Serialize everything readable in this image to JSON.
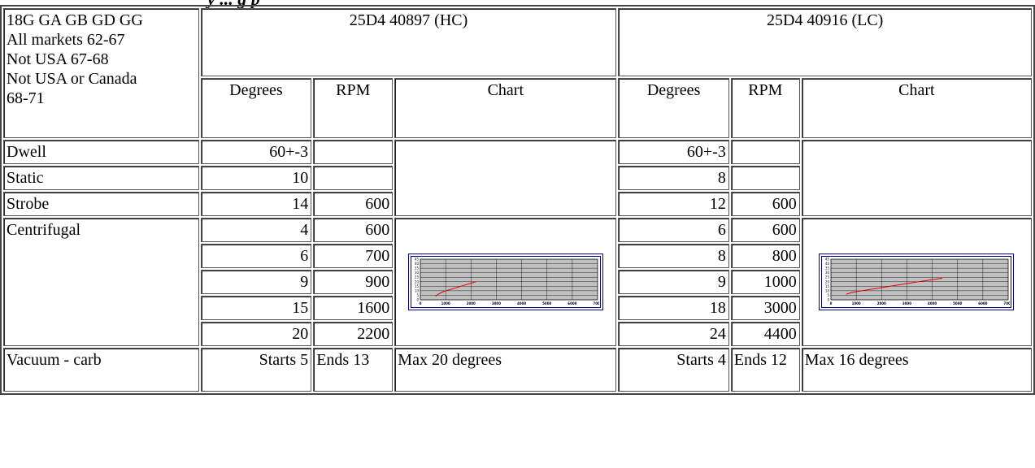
{
  "page_title_fragment": "y ... g p",
  "header": {
    "model_info": [
      "18G GA GB GD GG",
      "All markets 62-67",
      "Not USA 67-68",
      "Not USA or Canada",
      "68-71"
    ],
    "dist_hc": "25D4 40897 (HC)",
    "dist_lc": "25D4 40916 (LC)",
    "col_degrees": "Degrees",
    "col_rpm": "RPM",
    "col_chart": "Chart"
  },
  "rows": {
    "dwell": {
      "label": "Dwell",
      "hc_deg": "60+-3",
      "hc_rpm": "",
      "lc_deg": "60+-3",
      "lc_rpm": ""
    },
    "static": {
      "label": "Static",
      "hc_deg": "10",
      "hc_rpm": "",
      "lc_deg": "8",
      "lc_rpm": ""
    },
    "strobe": {
      "label": "Strobe",
      "hc_deg": "14",
      "hc_rpm": "600",
      "lc_deg": "12",
      "lc_rpm": "600"
    },
    "centrifugal": {
      "label": "Centrifugal",
      "hc": [
        [
          "4",
          "600"
        ],
        [
          "6",
          "700"
        ],
        [
          "9",
          "900"
        ],
        [
          "15",
          "1600"
        ],
        [
          "20",
          "2200"
        ]
      ],
      "lc": [
        [
          "6",
          "600"
        ],
        [
          "8",
          "800"
        ],
        [
          "9",
          "1000"
        ],
        [
          "18",
          "3000"
        ],
        [
          "24",
          "4400"
        ]
      ]
    },
    "vacuum": {
      "label": "Vacuum - carb",
      "hc_start": "Starts 5",
      "hc_end": "Ends 13",
      "hc_max": "Max 20 degrees",
      "lc_start": "Starts 4",
      "lc_end": "Ends 12",
      "lc_max": "Max 16 degrees"
    }
  },
  "chart_data": [
    {
      "type": "line",
      "title": "",
      "xlabel": "",
      "ylabel": "",
      "xlim": [
        0,
        7000
      ],
      "ylim": [
        0,
        45
      ],
      "x_ticks": [
        "0",
        "1000",
        "2000",
        "3000",
        "4000",
        "5000",
        "6000",
        "7000"
      ],
      "y_ticks": [
        "0",
        "5",
        "10",
        "15",
        "20",
        "25",
        "30",
        "35",
        "40",
        "45"
      ],
      "grid": true,
      "series": [
        {
          "x": [
            600,
            700,
            900,
            1600,
            2200
          ],
          "y": [
            4,
            6,
            9,
            15,
            20
          ]
        }
      ],
      "line_color": "#e00000",
      "plot_bg": "#c0c0c0"
    },
    {
      "type": "line",
      "title": "",
      "xlabel": "",
      "ylabel": "",
      "xlim": [
        0,
        7000
      ],
      "ylim": [
        0,
        45
      ],
      "x_ticks": [
        "0",
        "1000",
        "2000",
        "3000",
        "4000",
        "5000",
        "6000",
        "7000"
      ],
      "y_ticks": [
        "0",
        "5",
        "10",
        "15",
        "20",
        "25",
        "30",
        "35",
        "40",
        "45"
      ],
      "grid": true,
      "series": [
        {
          "x": [
            600,
            800,
            1000,
            3000,
            4400
          ],
          "y": [
            6,
            8,
            9,
            18,
            24
          ]
        }
      ],
      "line_color": "#e00000",
      "plot_bg": "#c0c0c0"
    }
  ]
}
